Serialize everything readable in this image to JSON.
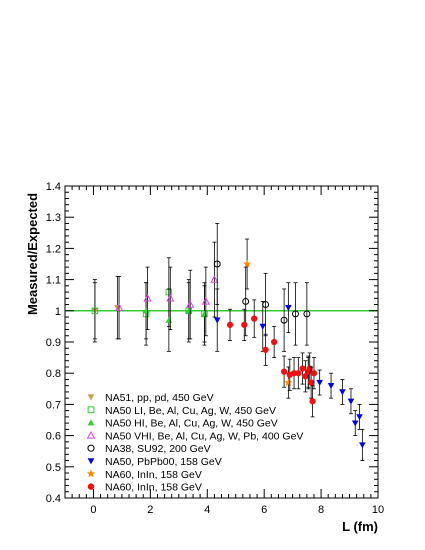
{
  "chart_data": {
    "type": "scatter",
    "xlabel": "L (fm)",
    "ylabel": "Measured/Expected",
    "xlim": [
      -1,
      10
    ],
    "ylim": [
      0.4,
      1.4
    ],
    "x_ticks": [
      0,
      2,
      4,
      6,
      8,
      10
    ],
    "x_tick_labels": [
      "0",
      "2",
      "4",
      "6",
      "8",
      "10"
    ],
    "y_ticks": [
      0.4,
      0.5,
      0.6,
      0.7,
      0.8,
      0.9,
      1.0,
      1.1,
      1.2,
      1.3,
      1.4
    ],
    "y_tick_labels": [
      "0.4",
      "0.5",
      "0.6",
      "0.7",
      "0.8",
      "0.9",
      "1",
      "1.1",
      "1.2",
      "1.3",
      "1.4"
    ],
    "reference_line": {
      "y": 1.0,
      "color": "#33cc33"
    },
    "legend_position": "bottom-left",
    "series": [
      {
        "name": "NA51, pp, pd, 450 GeV",
        "marker": "triangle-down-filled",
        "color": "#c8a050",
        "points": [
          {
            "x": 0.05,
            "y": 1.0,
            "err": 0.09
          },
          {
            "x": 0.85,
            "y": 1.01,
            "err": 0.1
          }
        ]
      },
      {
        "name": "NA50 LI, Be, Al, Cu, Ag, W, 450 GeV",
        "marker": "square-open",
        "color": "#33cc33",
        "points": [
          {
            "x": 0.05,
            "y": 1.0,
            "err": 0.1
          },
          {
            "x": 1.85,
            "y": 0.99,
            "err": 0.1
          },
          {
            "x": 2.65,
            "y": 1.06,
            "err": 0.11
          },
          {
            "x": 3.35,
            "y": 1.0,
            "err": 0.1
          },
          {
            "x": 3.9,
            "y": 0.99,
            "err": 0.09
          }
        ]
      },
      {
        "name": "NA50 HI, Be, Al, Cu, Ag, W, 450 GeV",
        "marker": "triangle-up-filled",
        "color": "#33cc33",
        "points": [
          {
            "x": 1.85,
            "y": 1.0,
            "err": 0.09
          },
          {
            "x": 2.65,
            "y": 0.97,
            "err": 0.1
          },
          {
            "x": 3.35,
            "y": 1.0,
            "err": 0.09
          },
          {
            "x": 3.9,
            "y": 0.99,
            "err": 0.1
          }
        ]
      },
      {
        "name": "NA50 VHI, Be, Al, Cu, Ag, W, Pb, 400 GeV",
        "marker": "triangle-up-open",
        "color": "#dd44dd",
        "points": [
          {
            "x": 0.9,
            "y": 1.01,
            "err": 0.1
          },
          {
            "x": 1.9,
            "y": 1.04,
            "err": 0.1
          },
          {
            "x": 2.7,
            "y": 1.04,
            "err": 0.1
          },
          {
            "x": 3.4,
            "y": 1.02,
            "err": 0.11
          },
          {
            "x": 3.95,
            "y": 1.03,
            "err": 0.11
          },
          {
            "x": 4.25,
            "y": 1.1,
            "err": 0.12
          }
        ]
      },
      {
        "name": "NA38, SU92, 200 GeV",
        "marker": "circle-open",
        "color": "#000000",
        "points": [
          {
            "x": 4.35,
            "y": 1.15,
            "err": 0.13
          },
          {
            "x": 5.35,
            "y": 1.03,
            "err": 0.11
          },
          {
            "x": 6.05,
            "y": 1.02,
            "err": 0.1
          },
          {
            "x": 6.7,
            "y": 0.97,
            "err": 0.1
          },
          {
            "x": 7.1,
            "y": 0.99,
            "err": 0.1
          },
          {
            "x": 7.5,
            "y": 0.99,
            "err": 0.1
          }
        ]
      },
      {
        "name": "NA50, PbPb00, 158 GeV",
        "marker": "triangle-down-filled",
        "color": "#0000dd",
        "points": [
          {
            "x": 4.35,
            "y": 0.97,
            "err": 0.1
          },
          {
            "x": 5.95,
            "y": 0.95,
            "err": 0.08
          },
          {
            "x": 6.85,
            "y": 1.01,
            "err": 0.08
          },
          {
            "x": 7.55,
            "y": 0.8,
            "err": 0.05
          },
          {
            "x": 7.95,
            "y": 0.77,
            "err": 0.04
          },
          {
            "x": 8.35,
            "y": 0.76,
            "err": 0.04
          },
          {
            "x": 8.75,
            "y": 0.74,
            "err": 0.04
          },
          {
            "x": 9.05,
            "y": 0.71,
            "err": 0.04
          },
          {
            "x": 9.2,
            "y": 0.64,
            "err": 0.04
          },
          {
            "x": 9.35,
            "y": 0.66,
            "err": 0.04
          },
          {
            "x": 9.45,
            "y": 0.57,
            "err": 0.05
          }
        ]
      },
      {
        "name": "NA60, InIn, 158 GeV",
        "marker": "star",
        "color": "#ff8800",
        "points": [
          {
            "x": 5.4,
            "y": 1.15,
            "err": 0.08
          },
          {
            "x": 6.85,
            "y": 0.77,
            "err": 0.05
          }
        ]
      },
      {
        "name": "NA60, InIn, 158 GeV",
        "marker": "circle-filled",
        "color": "#ee1111",
        "points": [
          {
            "x": 4.8,
            "y": 0.955,
            "err": 0.05
          },
          {
            "x": 5.3,
            "y": 0.955,
            "err": 0.05
          },
          {
            "x": 5.65,
            "y": 0.975,
            "err": 0.06
          },
          {
            "x": 6.05,
            "y": 0.875,
            "err": 0.05
          },
          {
            "x": 6.35,
            "y": 0.9,
            "err": 0.05
          },
          {
            "x": 6.7,
            "y": 0.805,
            "err": 0.05
          },
          {
            "x": 6.9,
            "y": 0.795,
            "err": 0.05
          },
          {
            "x": 7.05,
            "y": 0.8,
            "err": 0.05
          },
          {
            "x": 7.2,
            "y": 0.8,
            "err": 0.05
          },
          {
            "x": 7.35,
            "y": 0.815,
            "err": 0.05
          },
          {
            "x": 7.45,
            "y": 0.79,
            "err": 0.05
          },
          {
            "x": 7.55,
            "y": 0.805,
            "err": 0.05
          },
          {
            "x": 7.6,
            "y": 0.815,
            "err": 0.05
          },
          {
            "x": 7.65,
            "y": 0.77,
            "err": 0.05
          },
          {
            "x": 7.7,
            "y": 0.71,
            "err": 0.05
          },
          {
            "x": 7.75,
            "y": 0.8,
            "err": 0.05
          }
        ]
      }
    ]
  }
}
